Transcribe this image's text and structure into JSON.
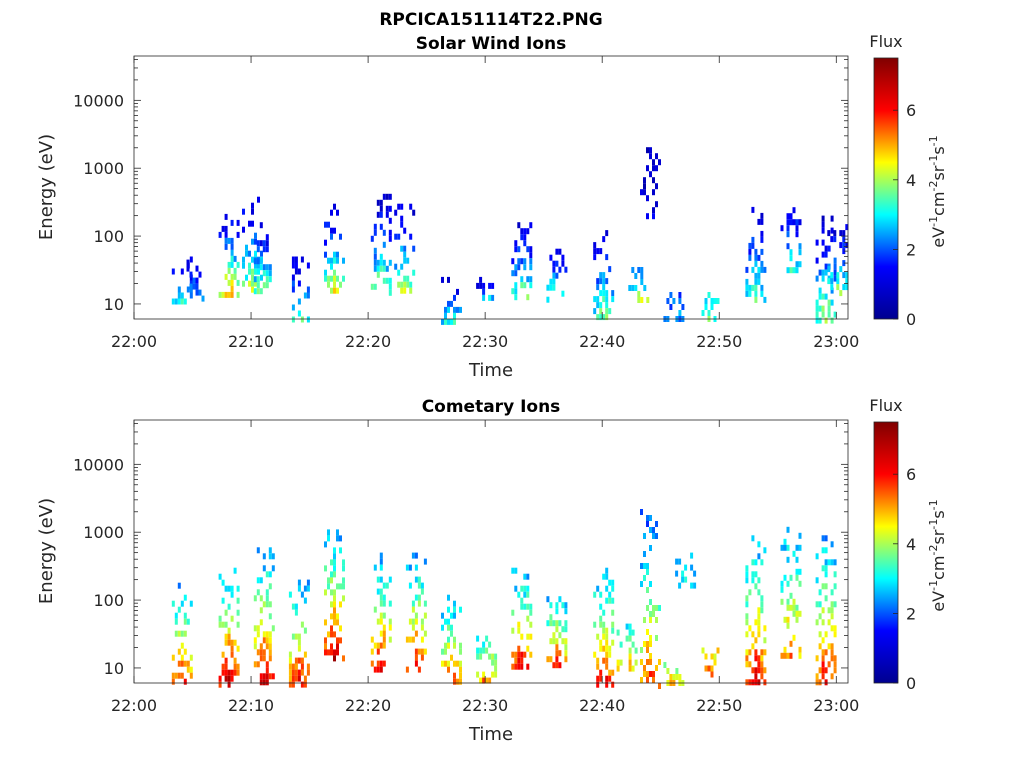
{
  "figure": {
    "title": "RPCICA151114T22.PNG"
  },
  "colormap": {
    "name": "jet",
    "stops": [
      "#00008f",
      "#0000ff",
      "#00ffff",
      "#ffff00",
      "#ff0000",
      "#800000"
    ],
    "label": "Flux",
    "unit_parts": [
      "eV",
      "-1",
      "cm",
      "-2",
      "sr",
      "-1",
      "s",
      "-1"
    ]
  },
  "chart_data": [
    {
      "type": "heatmap",
      "title": "Solar Wind Ions",
      "xlabel": "Time",
      "ylabel": "Energy (eV)",
      "xlim": [
        "22:00",
        "23:01"
      ],
      "xticks": [
        "22:00",
        "22:10",
        "22:20",
        "22:30",
        "22:40",
        "22:50",
        "23:00"
      ],
      "yscale": "log",
      "ylim": [
        6,
        45000
      ],
      "yticks": [
        "10",
        "100",
        "1000",
        "10000"
      ],
      "colorbar": {
        "label": "Flux",
        "range": [
          0,
          7.5
        ],
        "ticks": [
          "0",
          "2",
          "4",
          "6"
        ]
      },
      "grid": false,
      "bursts": [
        {
          "t": "22:04",
          "emin": 12,
          "emax": 50,
          "peak": 3.2,
          "lo": 1.0,
          "density": 0.55
        },
        {
          "t": "22:05",
          "emin": 12,
          "emax": 45,
          "peak": 3.0,
          "lo": 1.0,
          "density": 0.55
        },
        {
          "t": "22:08",
          "emin": 15,
          "emax": 260,
          "peak": 5.2,
          "lo": 1.0,
          "density": 0.6
        },
        {
          "t": "22:10",
          "emin": 15,
          "emax": 380,
          "peak": 4.6,
          "lo": 1.0,
          "density": 0.6
        },
        {
          "t": "22:11",
          "emin": 15,
          "emax": 160,
          "peak": 4.2,
          "lo": 1.0,
          "density": 0.55
        },
        {
          "t": "22:14",
          "emin": 6,
          "emax": 50,
          "peak": 3.8,
          "lo": 1.0,
          "density": 0.6
        },
        {
          "t": "22:17",
          "emin": 15,
          "emax": 300,
          "peak": 4.8,
          "lo": 1.0,
          "density": 0.55
        },
        {
          "t": "22:21",
          "emin": 15,
          "emax": 420,
          "peak": 4.2,
          "lo": 1.0,
          "density": 0.55
        },
        {
          "t": "22:23",
          "emin": 15,
          "emax": 300,
          "peak": 4.6,
          "lo": 1.0,
          "density": 0.55
        },
        {
          "t": "22:27",
          "emin": 6,
          "emax": 25,
          "peak": 3.3,
          "lo": 1.0,
          "density": 0.55
        },
        {
          "t": "22:30",
          "emin": 12,
          "emax": 25,
          "peak": 3.3,
          "lo": 1.0,
          "density": 0.45
        },
        {
          "t": "22:33",
          "emin": 12,
          "emax": 160,
          "peak": 4.2,
          "lo": 1.0,
          "density": 0.6
        },
        {
          "t": "22:36",
          "emin": 12,
          "emax": 80,
          "peak": 4.0,
          "lo": 1.0,
          "density": 0.55
        },
        {
          "t": "22:40",
          "emin": 6,
          "emax": 150,
          "peak": 4.0,
          "lo": 1.0,
          "density": 0.55
        },
        {
          "t": "22:43",
          "emin": 12,
          "emax": 35,
          "peak": 4.4,
          "lo": 2.0,
          "density": 0.45
        },
        {
          "t": "22:44",
          "emin": 200,
          "emax": 2500,
          "peak": 1.2,
          "lo": 0.6,
          "density": 0.35
        },
        {
          "t": "22:46",
          "emin": 6,
          "emax": 15,
          "peak": 2.5,
          "lo": 2.0,
          "density": 0.6
        },
        {
          "t": "22:49",
          "emin": 6,
          "emax": 15,
          "peak": 3.6,
          "lo": 3.0,
          "density": 0.6
        },
        {
          "t": "22:53",
          "emin": 12,
          "emax": 330,
          "peak": 3.6,
          "lo": 1.0,
          "density": 0.55
        },
        {
          "t": "22:56",
          "emin": 30,
          "emax": 400,
          "peak": 3.5,
          "lo": 1.0,
          "density": 0.45
        },
        {
          "t": "22:59",
          "emin": 6,
          "emax": 200,
          "peak": 4.2,
          "lo": 1.0,
          "density": 0.55
        },
        {
          "t": "23:00",
          "emin": 15,
          "emax": 150,
          "peak": 4.0,
          "lo": 1.0,
          "density": 0.5
        }
      ]
    },
    {
      "type": "heatmap",
      "title": "Cometary Ions",
      "xlabel": "Time",
      "ylabel": "Energy (eV)",
      "xlim": [
        "22:00",
        "23:01"
      ],
      "xticks": [
        "22:00",
        "22:10",
        "22:20",
        "22:30",
        "22:40",
        "22:50",
        "23:00"
      ],
      "yscale": "log",
      "ylim": [
        6,
        45000
      ],
      "yticks": [
        "10",
        "100",
        "1000",
        "10000"
      ],
      "colorbar": {
        "label": "Flux",
        "range": [
          0,
          7.5
        ],
        "ticks": [
          "0",
          "2",
          "4",
          "6"
        ]
      },
      "grid": false,
      "bursts": [
        {
          "t": "22:04",
          "emin": 6,
          "emax": 180,
          "peak": 6.2,
          "lo": 2.5,
          "density": 0.55
        },
        {
          "t": "22:08",
          "emin": 6,
          "emax": 300,
          "peak": 7.0,
          "lo": 2.5,
          "density": 0.6
        },
        {
          "t": "22:11",
          "emin": 6,
          "emax": 600,
          "peak": 6.8,
          "lo": 2.5,
          "density": 0.6
        },
        {
          "t": "22:14",
          "emin": 6,
          "emax": 200,
          "peak": 6.5,
          "lo": 2.5,
          "density": 0.55
        },
        {
          "t": "22:17",
          "emin": 15,
          "emax": 1100,
          "peak": 6.8,
          "lo": 2.5,
          "density": 0.55
        },
        {
          "t": "22:21",
          "emin": 10,
          "emax": 500,
          "peak": 6.3,
          "lo": 2.5,
          "density": 0.55
        },
        {
          "t": "22:24",
          "emin": 10,
          "emax": 500,
          "peak": 6.3,
          "lo": 2.5,
          "density": 0.55
        },
        {
          "t": "22:27",
          "emin": 6,
          "emax": 120,
          "peak": 6.0,
          "lo": 2.5,
          "density": 0.5
        },
        {
          "t": "22:30",
          "emin": 6,
          "emax": 30,
          "peak": 5.8,
          "lo": 3.0,
          "density": 0.5
        },
        {
          "t": "22:33",
          "emin": 10,
          "emax": 300,
          "peak": 6.8,
          "lo": 2.5,
          "density": 0.6
        },
        {
          "t": "22:36",
          "emin": 10,
          "emax": 140,
          "peak": 6.3,
          "lo": 2.5,
          "density": 0.55
        },
        {
          "t": "22:40",
          "emin": 6,
          "emax": 300,
          "peak": 6.5,
          "lo": 2.5,
          "density": 0.55
        },
        {
          "t": "22:42",
          "emin": 10,
          "emax": 45,
          "peak": 5.2,
          "lo": 3.0,
          "density": 0.45
        },
        {
          "t": "22:44",
          "emin": 6,
          "emax": 2200,
          "peak": 6.0,
          "lo": 2.0,
          "density": 0.45
        },
        {
          "t": "22:46",
          "emin": 6,
          "emax": 15,
          "peak": 5.0,
          "lo": 3.5,
          "density": 0.55
        },
        {
          "t": "22:47",
          "emin": 150,
          "emax": 500,
          "peak": 3.0,
          "lo": 2.5,
          "density": 0.45
        },
        {
          "t": "22:49",
          "emin": 6,
          "emax": 20,
          "peak": 6.3,
          "lo": 4.5,
          "density": 0.6
        },
        {
          "t": "22:53",
          "emin": 6,
          "emax": 900,
          "peak": 6.6,
          "lo": 2.5,
          "density": 0.55
        },
        {
          "t": "22:56",
          "emin": 15,
          "emax": 1200,
          "peak": 5.6,
          "lo": 2.5,
          "density": 0.5
        },
        {
          "t": "22:59",
          "emin": 6,
          "emax": 900,
          "peak": 6.5,
          "lo": 2.5,
          "density": 0.55
        }
      ]
    }
  ]
}
